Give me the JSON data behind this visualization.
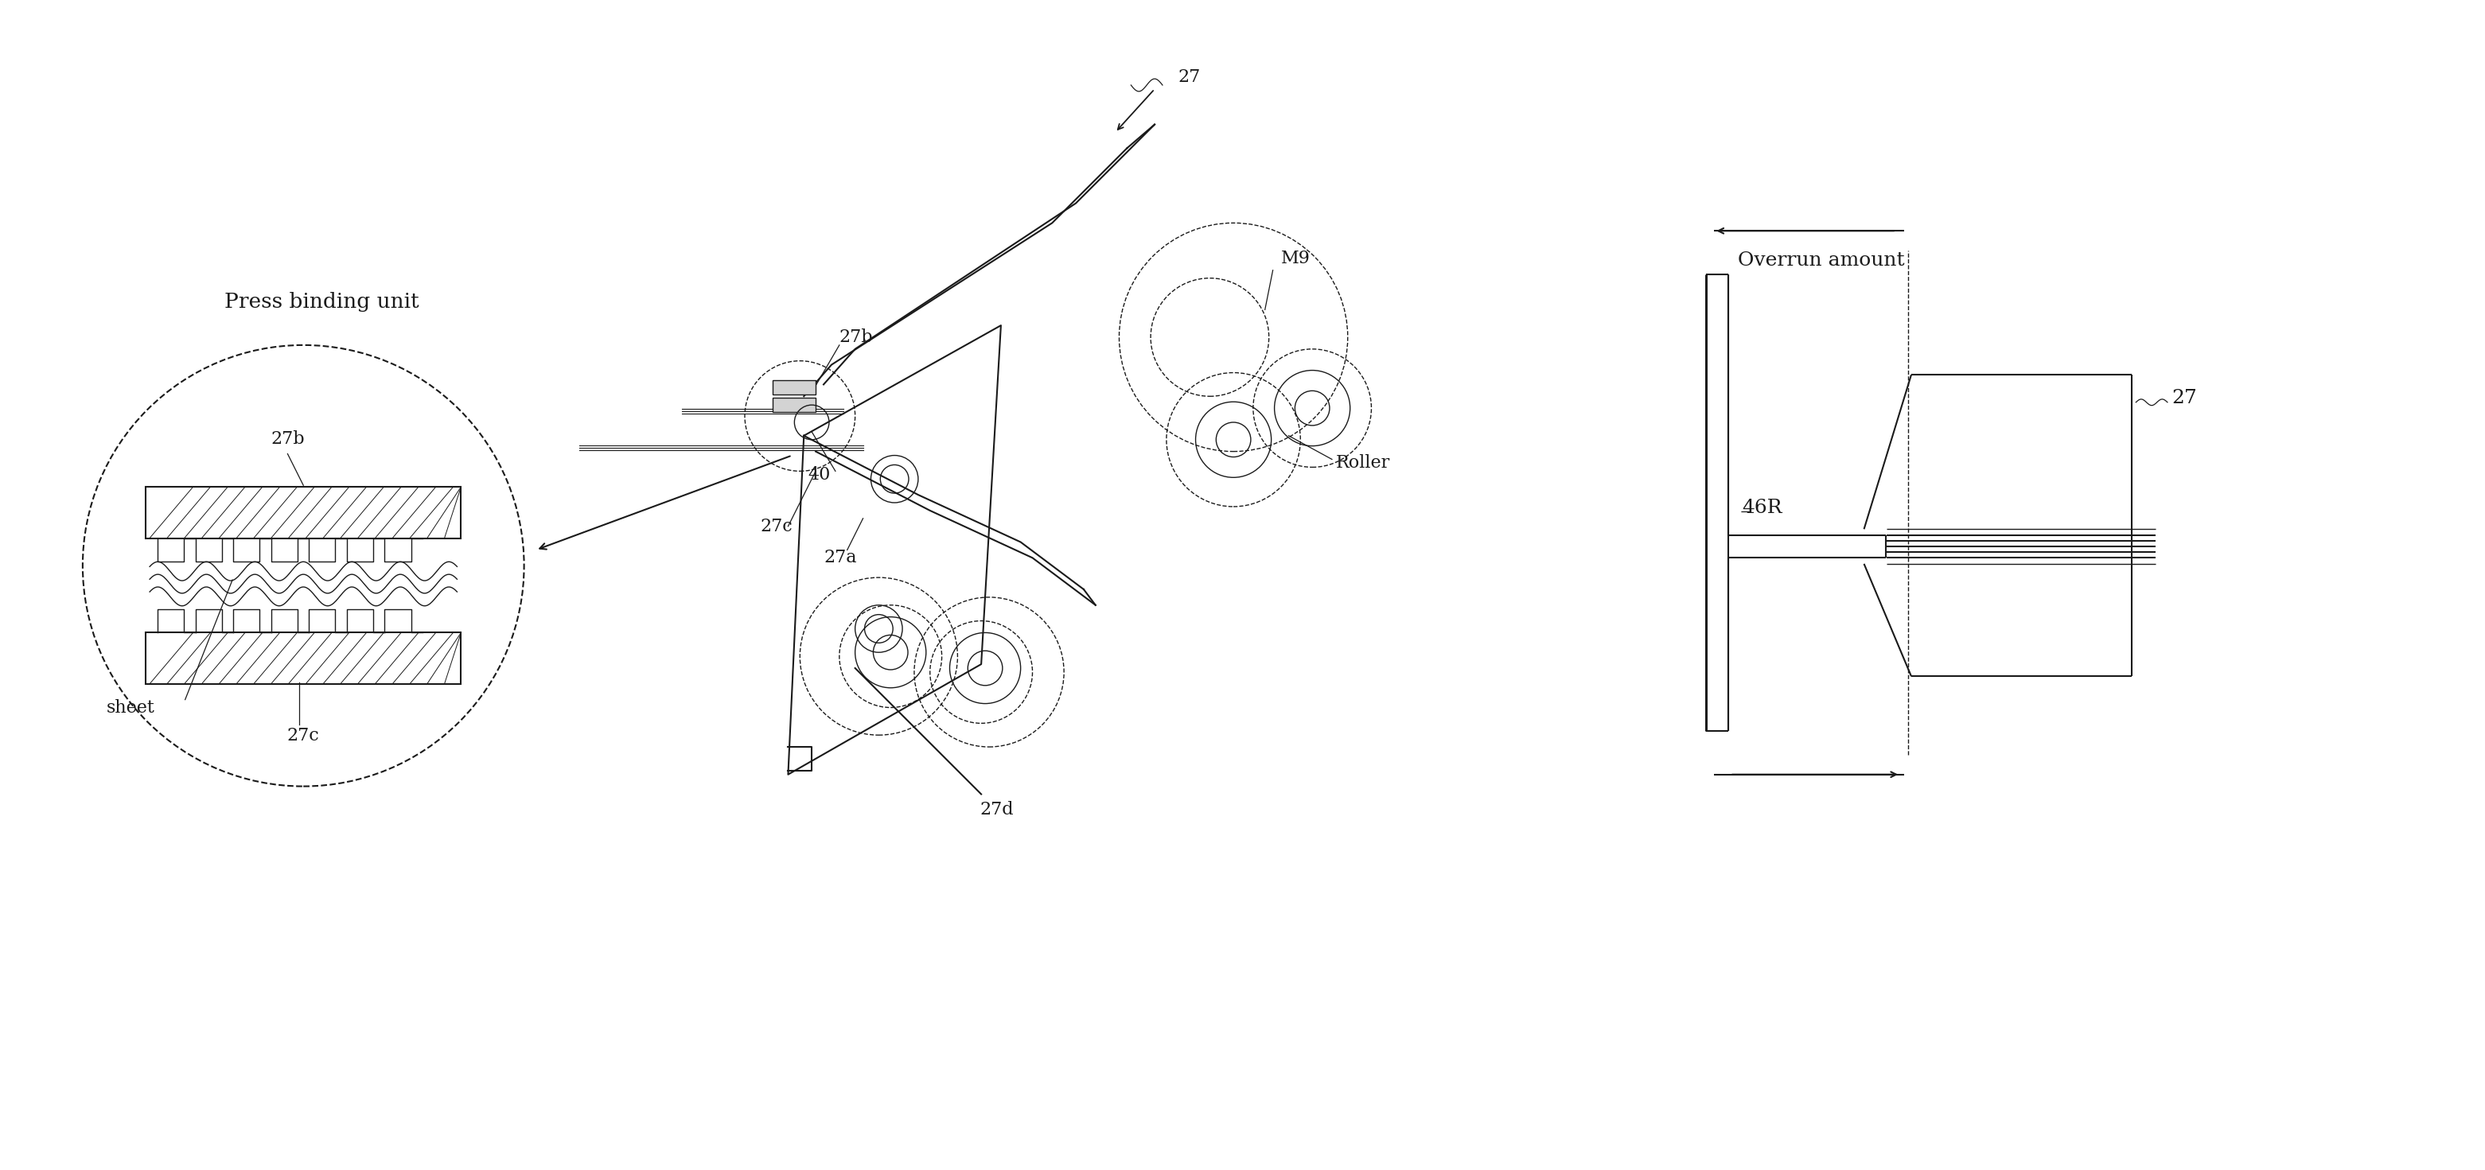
{
  "bg_color": "#ffffff",
  "line_color": "#1a1a1a",
  "labels": {
    "press_binding_unit": "Press binding unit",
    "27b_circle": "27b",
    "27c_circle": "27c",
    "sheet": "sheet",
    "27c_main": "27c",
    "27a": "27a",
    "40": "40",
    "27b_main": "27b",
    "27_main": "27",
    "M9": "M9",
    "Roller": "Roller",
    "27d": "27d",
    "overrun": "Overrun amount",
    "46R": "46R",
    "27_right": "27"
  }
}
